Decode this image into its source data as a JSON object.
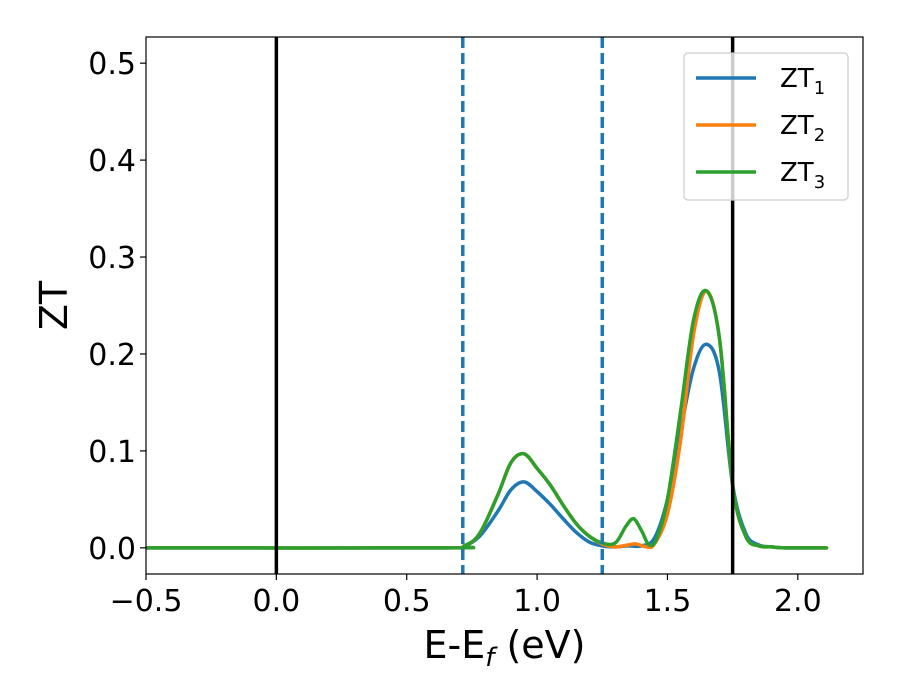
{
  "chart_data": {
    "type": "line",
    "xlabel_main": "E-E",
    "xlabel_sub": "f",
    "xlabel_unit": " (eV)",
    "ylabel": "ZT",
    "xlim": [
      -0.5,
      2.25
    ],
    "ylim": [
      -0.027,
      0.527
    ],
    "xticks": [
      -0.5,
      0.0,
      0.5,
      1.0,
      1.5,
      2.0
    ],
    "xtick_labels": [
      "−0.5",
      "0.0",
      "0.5",
      "1.0",
      "1.5",
      "2.0"
    ],
    "yticks": [
      0.0,
      0.1,
      0.2,
      0.3,
      0.4,
      0.5
    ],
    "ytick_labels": [
      "0.0",
      "0.1",
      "0.2",
      "0.3",
      "0.4",
      "0.5"
    ],
    "grid": false,
    "legend_position": "top-right",
    "vlines_solid": [
      0.0,
      1.75
    ],
    "vlines_dashed": [
      0.715,
      1.25
    ],
    "vline_solid_color": "#000000",
    "vline_dashed_color": "#1f77b4",
    "series": [
      {
        "name": "ZT",
        "sub": "1",
        "color": "#1f77b4",
        "x": [
          -0.5,
          0.65,
          0.72,
          0.78,
          0.85,
          0.9,
          0.95,
          1.0,
          1.05,
          1.1,
          1.15,
          1.2,
          1.25,
          1.3,
          1.35,
          1.4,
          1.45,
          1.5,
          1.55,
          1.6,
          1.65,
          1.7,
          1.75,
          1.8,
          1.85,
          1.9,
          1.95,
          2.11
        ],
        "y": [
          0,
          0,
          0.002,
          0.012,
          0.038,
          0.06,
          0.068,
          0.058,
          0.045,
          0.03,
          0.016,
          0.006,
          0.002,
          0.001,
          0.002,
          0.002,
          0.01,
          0.05,
          0.12,
          0.185,
          0.21,
          0.18,
          0.065,
          0.015,
          0.003,
          0.001,
          0,
          0
        ]
      },
      {
        "name": "ZT",
        "sub": "2",
        "color": "#ff7f0e",
        "x": [
          -0.5,
          0.65,
          0.72,
          0.78,
          0.85,
          0.9,
          0.95,
          1.0,
          1.05,
          1.1,
          1.15,
          1.2,
          1.25,
          1.3,
          1.35,
          1.38,
          1.42,
          1.45,
          1.5,
          1.55,
          1.6,
          1.65,
          1.7,
          1.75,
          1.8,
          1.85,
          1.9,
          1.95,
          2.11
        ],
        "y": [
          0,
          0,
          0.002,
          0.015,
          0.055,
          0.088,
          0.097,
          0.082,
          0.065,
          0.044,
          0.025,
          0.012,
          0.004,
          0.001,
          0.003,
          0.004,
          0.001,
          0.004,
          0.035,
          0.11,
          0.22,
          0.265,
          0.215,
          0.065,
          0.012,
          0.002,
          0.001,
          0,
          0
        ]
      },
      {
        "name": "ZT",
        "sub": "3",
        "color": "#2ca02c",
        "x": [
          -0.5,
          0.65,
          0.72,
          0.78,
          0.85,
          0.9,
          0.95,
          1.0,
          1.05,
          1.1,
          1.15,
          1.2,
          1.25,
          1.3,
          1.34,
          1.37,
          1.4,
          1.43,
          1.46,
          1.5,
          1.55,
          1.6,
          1.65,
          1.7,
          1.75,
          1.8,
          1.85,
          1.9,
          1.95,
          2.11
        ],
        "y": [
          0,
          0,
          0.002,
          0.015,
          0.055,
          0.088,
          0.097,
          0.082,
          0.065,
          0.044,
          0.025,
          0.012,
          0.005,
          0.005,
          0.022,
          0.03,
          0.018,
          0.003,
          0.01,
          0.05,
          0.14,
          0.235,
          0.265,
          0.215,
          0.065,
          0.012,
          0.002,
          0.001,
          0,
          0
        ]
      }
    ]
  }
}
